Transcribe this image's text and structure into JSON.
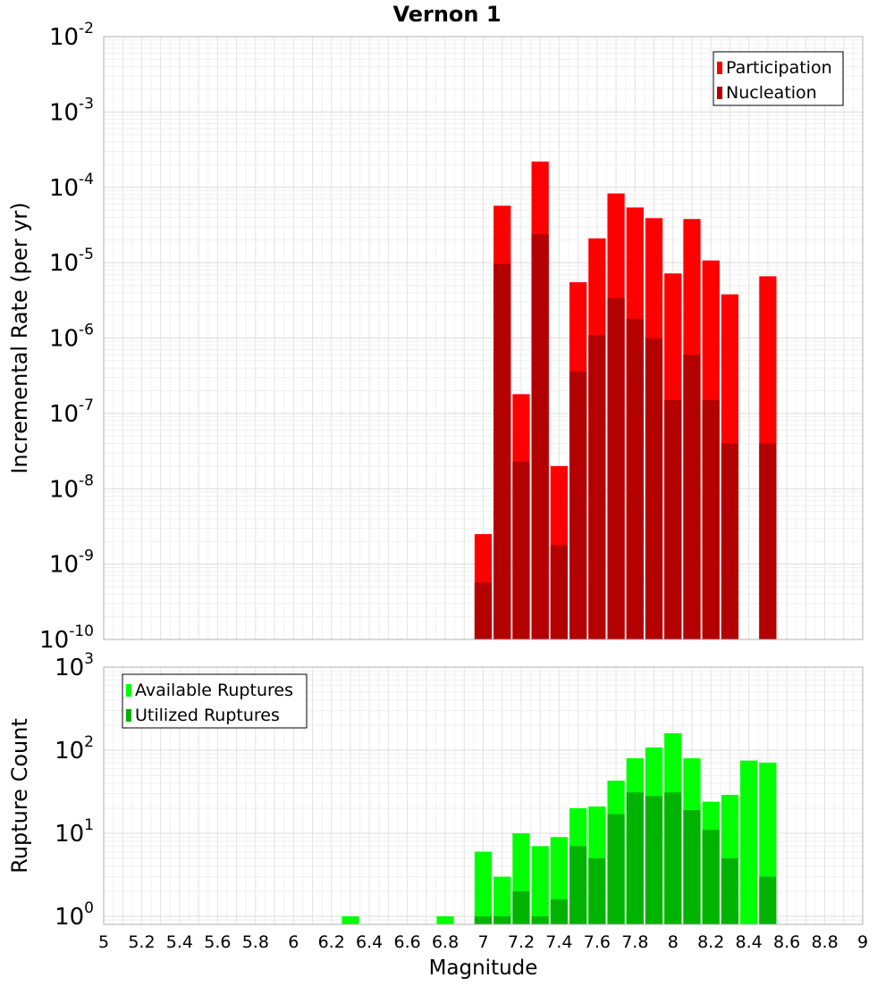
{
  "chart_data": [
    {
      "type": "bar",
      "title": "Vernon 1",
      "xlabel": "Magnitude",
      "ylabel": "Incremental Rate (per yr)",
      "xlim": [
        5,
        9
      ],
      "ylim": [
        1e-10,
        0.01
      ],
      "yscale": "log",
      "grid": true,
      "legend_position": "top-right",
      "bin_width": 0.1,
      "x": [
        7.0,
        7.1,
        7.2,
        7.3,
        7.4,
        7.5,
        7.6,
        7.7,
        7.8,
        7.9,
        8.0,
        8.1,
        8.2,
        8.3,
        8.5
      ],
      "series": [
        {
          "name": "Participation",
          "color": "#ff0000",
          "values": [
            2.5e-09,
            5.7e-05,
            1.8e-07,
            0.00022,
            2e-08,
            5.5e-06,
            2.1e-05,
            8.3e-05,
            5.4e-05,
            3.9e-05,
            7.2e-06,
            3.8e-05,
            1.07e-05,
            3.8e-06,
            6.6e-06
          ]
        },
        {
          "name": "Nucleation",
          "color": "#b30000",
          "values": [
            5.7e-10,
            9.6e-06,
            2.3e-08,
            2.4e-05,
            1.8e-09,
            3.6e-07,
            1.1e-06,
            3.4e-06,
            1.8e-06,
            1e-06,
            1.5e-07,
            6e-07,
            1.5e-07,
            4e-08,
            4e-08
          ]
        }
      ]
    },
    {
      "type": "bar",
      "xlabel": "Magnitude",
      "ylabel": "Rupture Count",
      "xlim": [
        5,
        9
      ],
      "ylim": [
        0.8,
        1000
      ],
      "yscale": "log",
      "grid": true,
      "legend_position": "top-left",
      "bin_width": 0.1,
      "x": [
        6.3,
        6.8,
        7.0,
        7.1,
        7.2,
        7.3,
        7.4,
        7.5,
        7.6,
        7.7,
        7.8,
        7.9,
        8.0,
        8.1,
        8.2,
        8.3,
        8.4,
        8.5
      ],
      "series": [
        {
          "name": "Available Ruptures",
          "color": "#00ff00",
          "values": [
            1,
            1,
            6,
            3,
            10,
            7,
            9,
            20,
            21,
            43,
            80,
            108,
            160,
            80,
            24,
            29,
            75,
            71
          ]
        },
        {
          "name": "Utilized Ruptures",
          "color": "#00b300",
          "values": [
            0,
            0,
            1,
            1,
            2,
            1,
            1.6,
            7,
            5,
            17,
            31,
            28,
            31,
            19,
            11,
            5,
            0,
            3
          ]
        }
      ]
    }
  ]
}
